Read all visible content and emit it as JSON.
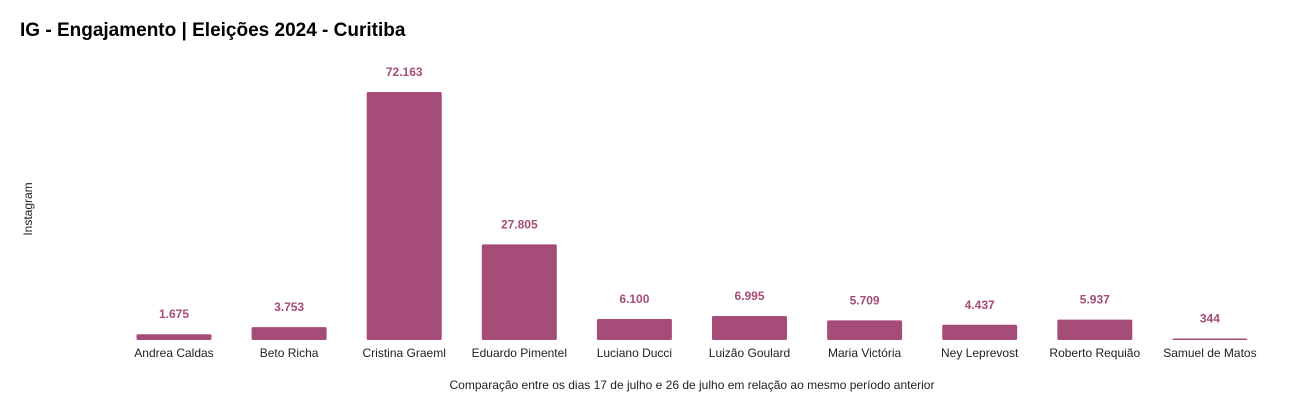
{
  "colors": {
    "bar": "#a54d78",
    "data_label": "#a54d78"
  },
  "chart_data": {
    "type": "bar",
    "title": "IG - Engajamento | Eleições 2024 - Curitiba",
    "ylabel": "Instagram",
    "xlabel": "Comparação entre os dias 17 de julho e 26 de julho em relação ao mesmo período anterior",
    "categories": [
      "Andrea Caldas",
      "Beto Richa",
      "Cristina Graeml",
      "Eduardo Pimentel",
      "Luciano Ducci",
      "Luizão Goulard",
      "Maria Victória",
      "Ney Leprevost",
      "Roberto Requião",
      "Samuel de Matos"
    ],
    "values": [
      1675,
      3753,
      72163,
      27805,
      6100,
      6995,
      5709,
      4437,
      5937,
      344
    ],
    "value_labels": [
      "1.675",
      "3.753",
      "72.163",
      "27.805",
      "6.100",
      "6.995",
      "5.709",
      "4.437",
      "5.937",
      "344"
    ],
    "ylim": [
      0,
      72163
    ],
    "grid": false,
    "legend": false
  }
}
